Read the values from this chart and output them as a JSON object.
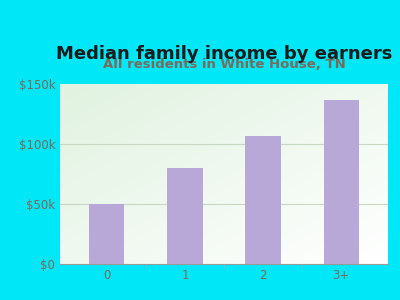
{
  "title": "Median family income by earners",
  "subtitle": "All residents in White House, TN",
  "categories": [
    "0",
    "1",
    "2",
    "3+"
  ],
  "values": [
    50000,
    80000,
    107000,
    137000
  ],
  "bar_color": "#b8a8d8",
  "outer_bg_color": "#00e8f8",
  "title_color": "#1a1a1a",
  "subtitle_color": "#7a6a5a",
  "tick_color": "#7a6a5a",
  "ylim": [
    0,
    150000
  ],
  "yticks": [
    0,
    50000,
    100000,
    150000
  ],
  "ytick_labels": [
    "$0",
    "$50k",
    "$100k",
    "$150k"
  ],
  "title_fontsize": 13,
  "subtitle_fontsize": 9.5,
  "tick_fontsize": 8.5,
  "grid_color": "#c8d8c0",
  "plot_grad_top": "#d8ecd8",
  "plot_grad_bottom": "#f5faf5"
}
